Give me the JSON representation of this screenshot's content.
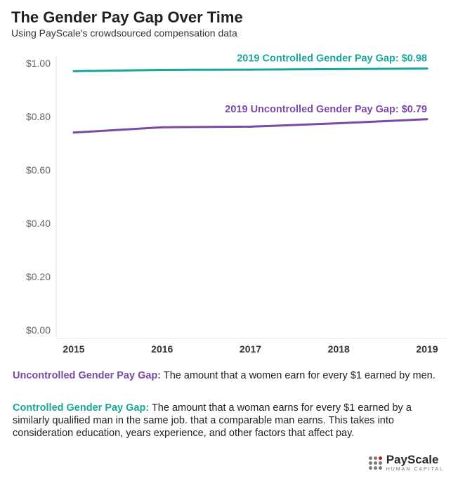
{
  "header": {
    "title": "The Gender Pay Gap Over Time",
    "subtitle": "Using PayScale's crowdsourced compensation data"
  },
  "chart_data": {
    "type": "line",
    "x": [
      "2015",
      "2016",
      "2017",
      "2018",
      "2019"
    ],
    "ylim": [
      0,
      1
    ],
    "yticks": [
      "$0.00",
      "$0.20",
      "$0.40",
      "$0.60",
      "$0.80",
      "$1.00"
    ],
    "ytick_values": [
      0,
      0.2,
      0.4,
      0.6,
      0.8,
      1.0
    ],
    "grid": false,
    "series": [
      {
        "name": "Controlled Gender Pay Gap",
        "values": [
          0.97,
          0.975,
          0.976,
          0.978,
          0.98
        ],
        "color": "#1aa79b",
        "end_label": "2019 Controlled Gender Pay Gap: $0.98"
      },
      {
        "name": "Uncontrolled Gender Pay Gap",
        "values": [
          0.74,
          0.76,
          0.762,
          0.775,
          0.79
        ],
        "color": "#7b49a8",
        "end_label": "2019 Uncontrolled Gender Pay Gap: $0.79"
      }
    ]
  },
  "definitions": {
    "uncontrolled": {
      "term": "Uncontrolled Gender Pay Gap:",
      "text": " The amount that a women earn for every $1 earned by men.",
      "color": "#7b49a8"
    },
    "controlled": {
      "term": "Controlled Gender Pay Gap:",
      "text": " The amount that a woman earns for every $1 earned by a similarly qualified man in the same job. that a comparable man earns. This takes into consideration education, years experience, and other factors that affect pay.",
      "color": "#1aa79b"
    }
  },
  "logo": {
    "name": "PayScale",
    "tagline": "HUMAN CAPITAL"
  }
}
